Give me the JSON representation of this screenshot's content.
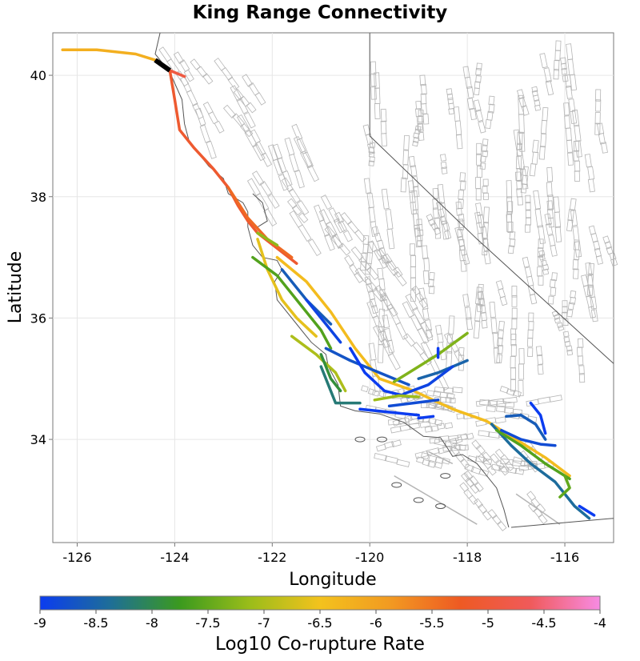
{
  "title": "King Range Connectivity",
  "x_axis": {
    "label": "Longitude",
    "ticks": [
      {
        "value": -126,
        "label": "-126"
      },
      {
        "value": -124,
        "label": "-124"
      },
      {
        "value": -122,
        "label": "-122"
      },
      {
        "value": -120,
        "label": "-120"
      },
      {
        "value": -118,
        "label": "-118"
      },
      {
        "value": -116,
        "label": "-116"
      }
    ],
    "range": [
      -126.5,
      -115.0
    ]
  },
  "y_axis": {
    "label": "Latitude",
    "ticks": [
      {
        "value": 34,
        "label": "34"
      },
      {
        "value": 36,
        "label": "36"
      },
      {
        "value": 38,
        "label": "38"
      },
      {
        "value": 40,
        "label": "40"
      }
    ],
    "range": [
      32.3,
      40.7
    ]
  },
  "colorbar": {
    "label": "Log10 Co-rupture Rate",
    "range": [
      -9,
      -4
    ],
    "ticks": [
      {
        "value": -9,
        "label": "-9"
      },
      {
        "value": -8.5,
        "label": "-8.5"
      },
      {
        "value": -8,
        "label": "-8"
      },
      {
        "value": -7.5,
        "label": "-7.5"
      },
      {
        "value": -7,
        "label": "-7"
      },
      {
        "value": -6.5,
        "label": "-6.5"
      },
      {
        "value": -6,
        "label": "-6"
      },
      {
        "value": -5.5,
        "label": "-5.5"
      },
      {
        "value": -5,
        "label": "-5"
      },
      {
        "value": -4.5,
        "label": "-4.5"
      },
      {
        "value": -4,
        "label": "-4"
      }
    ],
    "colors": [
      "#0b3cf0",
      "#1e6e98",
      "#3b9a1e",
      "#9bbd1a",
      "#f3c21d",
      "#f29a21",
      "#ee5a23",
      "#f05a5a",
      "#f78be3"
    ]
  },
  "colors": {
    "source_fault": "#000000",
    "background_faults": "#b5b5b5",
    "coastline": "#555555",
    "state_border": "#555555",
    "grid": "#e6e6e6"
  },
  "chart_data": {
    "type": "map",
    "title": "King Range Connectivity",
    "xlabel": "Longitude",
    "ylabel": "Latitude",
    "xlim": [
      -126.5,
      -115.0
    ],
    "ylim": [
      32.3,
      40.7
    ],
    "grid": true,
    "source_section": {
      "name": "",
      "coords": [
        [
          -124.4,
          40.25
        ],
        [
          -124.1,
          40.08
        ]
      ]
    },
    "faults": [
      {
        "rate": -6.2,
        "coords": [
          [
            -126.3,
            40.42
          ],
          [
            -125.6,
            40.42
          ],
          [
            -124.8,
            40.35
          ],
          [
            -124.4,
            40.25
          ]
        ]
      },
      {
        "rate": -4.9,
        "coords": [
          [
            -124.1,
            40.08
          ],
          [
            -123.8,
            39.98
          ]
        ]
      },
      {
        "rate": -5.1,
        "coords": [
          [
            -124.1,
            40.08
          ],
          [
            -124.0,
            39.6
          ],
          [
            -123.9,
            39.1
          ],
          [
            -123.6,
            38.8
          ],
          [
            -123.2,
            38.45
          ],
          [
            -122.9,
            38.15
          ],
          [
            -122.7,
            37.85
          ],
          [
            -122.5,
            37.6
          ],
          [
            -122.3,
            37.4
          ],
          [
            -121.9,
            37.15
          ],
          [
            -121.5,
            36.9
          ]
        ]
      },
      {
        "rate": -5.4,
        "coords": [
          [
            -122.9,
            38.15
          ],
          [
            -122.5,
            37.65
          ],
          [
            -122.1,
            37.3
          ],
          [
            -121.6,
            37.0
          ]
        ]
      },
      {
        "rate": -7.2,
        "coords": [
          [
            -122.3,
            37.4
          ],
          [
            -121.9,
            37.2
          ]
        ]
      },
      {
        "rate": -6.6,
        "coords": [
          [
            -122.3,
            37.3
          ],
          [
            -122.1,
            36.8
          ],
          [
            -121.8,
            36.3
          ],
          [
            -121.5,
            36.0
          ],
          [
            -121.1,
            35.7
          ]
        ]
      },
      {
        "rate": -6.4,
        "coords": [
          [
            -121.9,
            37.0
          ],
          [
            -121.3,
            36.6
          ],
          [
            -120.8,
            36.1
          ],
          [
            -120.3,
            35.5
          ],
          [
            -119.8,
            35.0
          ],
          [
            -119.1,
            34.8
          ],
          [
            -118.3,
            34.5
          ],
          [
            -117.6,
            34.3
          ],
          [
            -117.0,
            34.0
          ],
          [
            -116.4,
            33.7
          ],
          [
            -115.9,
            33.4
          ]
        ]
      },
      {
        "rate": -7.6,
        "coords": [
          [
            -122.4,
            37.0
          ],
          [
            -121.9,
            36.7
          ],
          [
            -121.5,
            36.3
          ],
          [
            -121.0,
            35.8
          ],
          [
            -120.8,
            35.5
          ]
        ]
      },
      {
        "rate": -8.6,
        "coords": [
          [
            -121.8,
            36.8
          ],
          [
            -121.3,
            36.3
          ],
          [
            -120.8,
            35.9
          ]
        ]
      },
      {
        "rate": -8.9,
        "coords": [
          [
            -121.3,
            36.3
          ],
          [
            -120.9,
            35.9
          ],
          [
            -120.6,
            35.6
          ]
        ]
      },
      {
        "rate": -7.0,
        "coords": [
          [
            -121.6,
            35.7
          ],
          [
            -121.1,
            35.4
          ],
          [
            -120.7,
            35.1
          ],
          [
            -120.5,
            34.8
          ]
        ]
      },
      {
        "rate": -7.9,
        "coords": [
          [
            -121.0,
            35.4
          ],
          [
            -120.8,
            35.0
          ],
          [
            -120.6,
            34.8
          ]
        ]
      },
      {
        "rate": -8.2,
        "coords": [
          [
            -121.0,
            35.2
          ],
          [
            -120.7,
            34.6
          ],
          [
            -120.2,
            34.6
          ]
        ]
      },
      {
        "rate": -8.7,
        "coords": [
          [
            -120.9,
            35.5
          ],
          [
            -120.4,
            35.3
          ],
          [
            -119.8,
            35.1
          ],
          [
            -119.2,
            34.9
          ]
        ]
      },
      {
        "rate": -9.0,
        "coords": [
          [
            -120.4,
            35.5
          ],
          [
            -120.1,
            35.1
          ],
          [
            -119.7,
            34.8
          ],
          [
            -119.2,
            34.7
          ]
        ]
      },
      {
        "rate": -7.3,
        "coords": [
          [
            -119.5,
            34.95
          ],
          [
            -119.0,
            35.2
          ],
          [
            -118.6,
            35.4
          ],
          [
            -118.0,
            35.75
          ]
        ]
      },
      {
        "rate": -8.5,
        "coords": [
          [
            -119.0,
            35.0
          ],
          [
            -118.6,
            35.1
          ],
          [
            -118.0,
            35.3
          ]
        ]
      },
      {
        "rate": -8.9,
        "coords": [
          [
            -119.3,
            34.75
          ],
          [
            -118.8,
            34.9
          ],
          [
            -118.3,
            35.2
          ]
        ]
      },
      {
        "rate": -9.0,
        "coords": [
          [
            -120.2,
            34.5
          ],
          [
            -119.6,
            34.45
          ],
          [
            -119.0,
            34.4
          ]
        ]
      },
      {
        "rate": -8.8,
        "coords": [
          [
            -119.6,
            34.55
          ],
          [
            -119.1,
            34.6
          ],
          [
            -118.6,
            34.65
          ]
        ]
      },
      {
        "rate": -7.1,
        "coords": [
          [
            -119.9,
            34.65
          ],
          [
            -119.4,
            34.72
          ],
          [
            -119.0,
            34.7
          ]
        ]
      },
      {
        "rate": -9.0,
        "coords": [
          [
            -119.0,
            34.35
          ],
          [
            -118.7,
            34.38
          ]
        ]
      },
      {
        "rate": -8.4,
        "coords": [
          [
            -117.5,
            34.25
          ],
          [
            -117.1,
            33.9
          ],
          [
            -116.7,
            33.6
          ],
          [
            -116.2,
            33.3
          ],
          [
            -115.8,
            32.9
          ],
          [
            -115.5,
            32.7
          ]
        ]
      },
      {
        "rate": -7.6,
        "coords": [
          [
            -117.4,
            34.15
          ],
          [
            -116.9,
            33.9
          ],
          [
            -116.4,
            33.6
          ],
          [
            -115.9,
            33.35
          ]
        ]
      },
      {
        "rate": -8.8,
        "coords": [
          [
            -117.3,
            34.15
          ],
          [
            -116.9,
            34.0
          ],
          [
            -116.5,
            33.92
          ],
          [
            -116.2,
            33.9
          ]
        ]
      },
      {
        "rate": -8.6,
        "coords": [
          [
            -117.2,
            34.38
          ],
          [
            -116.9,
            34.4
          ],
          [
            -116.6,
            34.25
          ],
          [
            -116.4,
            34.0
          ]
        ]
      },
      {
        "rate": -9.0,
        "coords": [
          [
            -116.7,
            34.6
          ],
          [
            -116.5,
            34.4
          ],
          [
            -116.4,
            34.1
          ]
        ]
      },
      {
        "rate": -7.5,
        "coords": [
          [
            -116.0,
            33.4
          ],
          [
            -115.9,
            33.2
          ],
          [
            -116.1,
            33.05
          ]
        ]
      },
      {
        "rate": -9.0,
        "coords": [
          [
            -115.7,
            32.9
          ],
          [
            -115.4,
            32.75
          ]
        ]
      },
      {
        "rate": -9.0,
        "coords": [
          [
            -118.6,
            35.5
          ],
          [
            -118.6,
            35.35
          ]
        ]
      }
    ]
  }
}
